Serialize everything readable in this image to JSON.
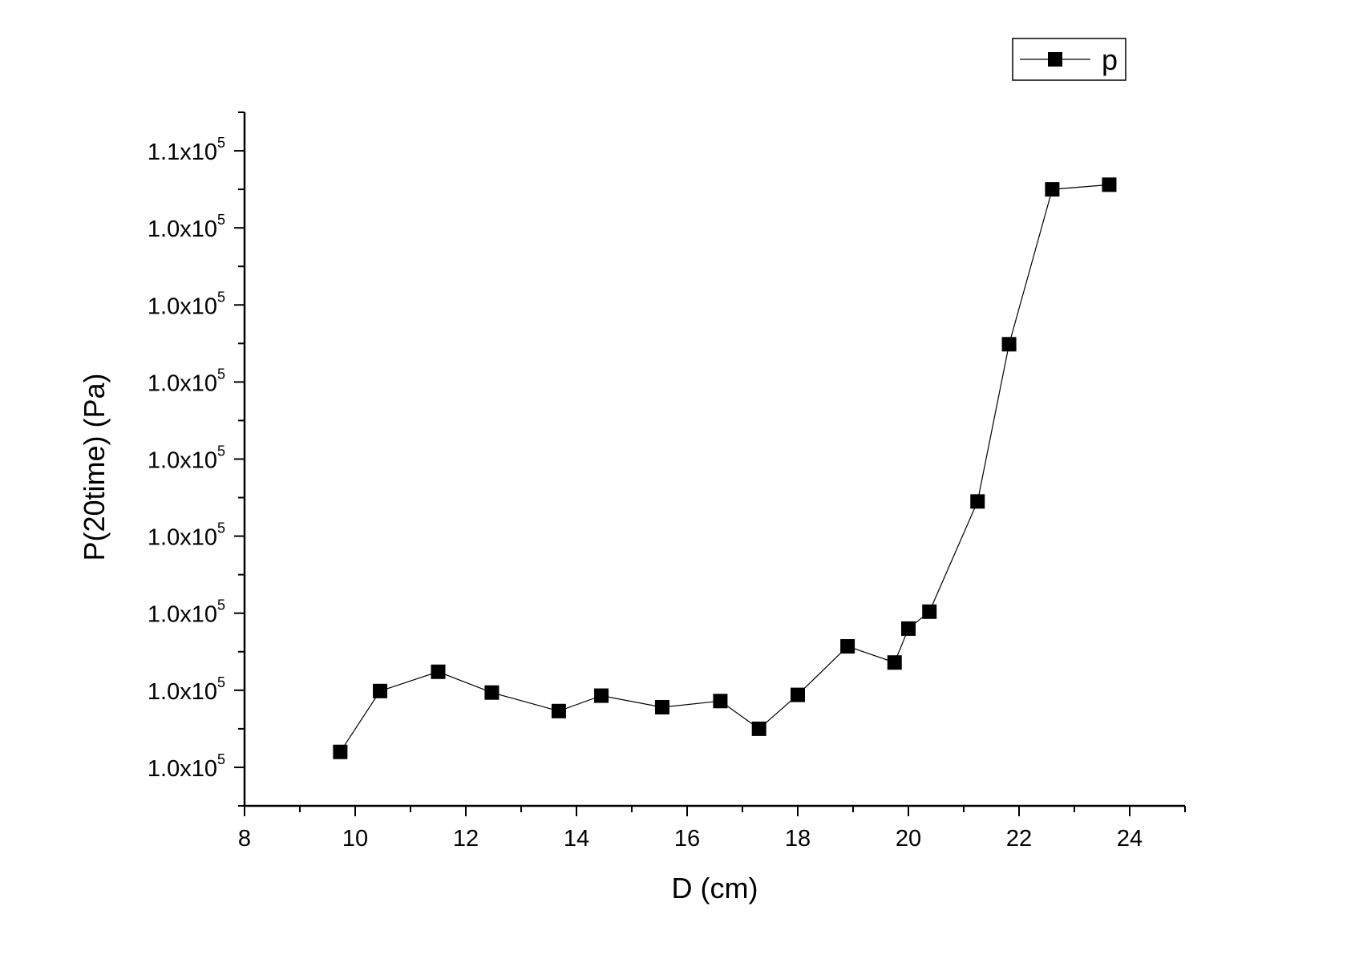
{
  "chart_data": {
    "type": "line",
    "title": "",
    "xlabel": "D (cm)",
    "ylabel": "P(20time) (Pa)",
    "xlim": [
      8,
      25
    ],
    "ylim": [
      -0.5,
      8.5
    ],
    "x_ticks": [
      8,
      10,
      12,
      14,
      16,
      18,
      20,
      22,
      24
    ],
    "x_tick_labels": [
      "8",
      "10",
      "12",
      "14",
      "16",
      "18",
      "20",
      "22",
      "24"
    ],
    "y_ticks": [
      0,
      1,
      2,
      3,
      4,
      5,
      6,
      7,
      8
    ],
    "y_tick_labels": [
      {
        "mantissa": "1.0x10",
        "exponent": "5"
      },
      {
        "mantissa": "1.0x10",
        "exponent": "5"
      },
      {
        "mantissa": "1.0x10",
        "exponent": "5"
      },
      {
        "mantissa": "1.0x10",
        "exponent": "5"
      },
      {
        "mantissa": "1.0x10",
        "exponent": "5"
      },
      {
        "mantissa": "1.0x10",
        "exponent": "5"
      },
      {
        "mantissa": "1.0x10",
        "exponent": "5"
      },
      {
        "mantissa": "1.0x10",
        "exponent": "5"
      },
      {
        "mantissa": "1.1x10",
        "exponent": "5"
      }
    ],
    "grid": false,
    "legend_position": "top-right",
    "series": [
      {
        "name": "p",
        "color": "#000000",
        "marker": "square",
        "x": [
          9.73,
          10.45,
          11.5,
          12.47,
          13.68,
          14.45,
          15.55,
          16.6,
          17.3,
          18.0,
          18.9,
          19.75,
          20.0,
          20.38,
          21.25,
          21.82,
          22.6,
          23.63
        ],
        "y": [
          0.2,
          0.99,
          1.24,
          0.97,
          0.73,
          0.93,
          0.78,
          0.86,
          0.5,
          0.94,
          1.57,
          1.36,
          1.8,
          2.02,
          3.45,
          5.49,
          7.5,
          7.56
        ]
      }
    ]
  }
}
